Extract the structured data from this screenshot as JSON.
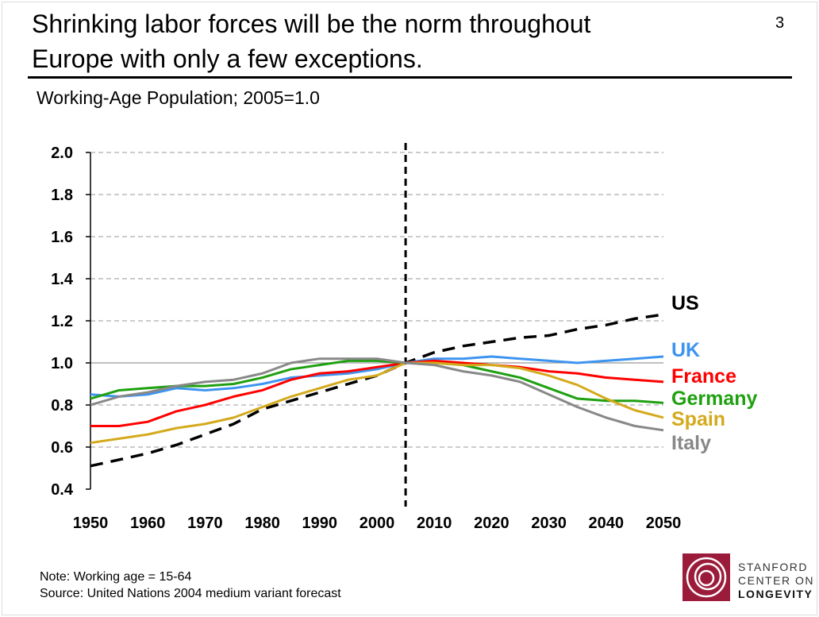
{
  "slide": {
    "title_line1": "Shrinking labor forces will be the norm throughout",
    "title_line2": "Europe with only a few exceptions.",
    "page_number": "3",
    "subtitle": "Working-Age Population; 2005=1.0",
    "note": "Note: Working age = 15-64",
    "source": "Source: United Nations 2004 medium variant forecast",
    "logo": {
      "line1": "STANFORD",
      "line2": "CENTER ON",
      "line3": "LONGEVITY",
      "color": "#9b1b3a"
    }
  },
  "chart_data": {
    "type": "line",
    "title": "",
    "xlabel": "",
    "ylabel": "",
    "xlim": [
      1950,
      2050
    ],
    "ylim": [
      0.4,
      2.0
    ],
    "x_ticks": [
      "1950",
      "1960",
      "1970",
      "1980",
      "1990",
      "2000",
      "2010",
      "2020",
      "2030",
      "2040",
      "2050"
    ],
    "y_ticks": [
      "0.4",
      "0.6",
      "0.8",
      "1.0",
      "1.2",
      "1.4",
      "1.6",
      "1.8",
      "2.0"
    ],
    "grid": "horizontal dashed",
    "reference_line_x": 2005,
    "x": [
      1950,
      1955,
      1960,
      1965,
      1970,
      1975,
      1980,
      1985,
      1990,
      1995,
      2000,
      2005,
      2010,
      2015,
      2020,
      2025,
      2030,
      2035,
      2040,
      2045,
      2050
    ],
    "series": [
      {
        "name": "US",
        "color": "#000000",
        "dashed": true,
        "values": [
          0.51,
          0.54,
          0.57,
          0.61,
          0.66,
          0.71,
          0.78,
          0.82,
          0.86,
          0.9,
          0.94,
          1.0,
          1.05,
          1.08,
          1.1,
          1.12,
          1.13,
          1.16,
          1.18,
          1.21,
          1.23
        ]
      },
      {
        "name": "UK",
        "color": "#3d94f0",
        "values": [
          0.85,
          0.84,
          0.85,
          0.88,
          0.87,
          0.88,
          0.9,
          0.93,
          0.94,
          0.95,
          0.97,
          1.0,
          1.02,
          1.02,
          1.03,
          1.02,
          1.01,
          1.0,
          1.01,
          1.02,
          1.03
        ]
      },
      {
        "name": "France",
        "color": "#ff0000",
        "values": [
          0.7,
          0.7,
          0.72,
          0.77,
          0.8,
          0.84,
          0.87,
          0.92,
          0.95,
          0.96,
          0.98,
          1.0,
          1.01,
          1.0,
          0.99,
          0.98,
          0.96,
          0.95,
          0.93,
          0.92,
          0.91
        ]
      },
      {
        "name": "Germany",
        "color": "#1fa010",
        "values": [
          0.83,
          0.87,
          0.88,
          0.89,
          0.89,
          0.9,
          0.93,
          0.97,
          0.99,
          1.01,
          1.01,
          1.0,
          1.0,
          0.99,
          0.96,
          0.93,
          0.88,
          0.83,
          0.82,
          0.82,
          0.81
        ]
      },
      {
        "name": "Spain",
        "color": "#d4aa1c",
        "values": [
          0.62,
          0.64,
          0.66,
          0.69,
          0.71,
          0.74,
          0.79,
          0.84,
          0.88,
          0.92,
          0.94,
          1.0,
          1.0,
          0.99,
          0.99,
          0.975,
          0.94,
          0.895,
          0.83,
          0.775,
          0.74
        ]
      },
      {
        "name": "Italy",
        "color": "#888888",
        "values": [
          0.8,
          0.84,
          0.86,
          0.89,
          0.91,
          0.92,
          0.95,
          1.0,
          1.02,
          1.02,
          1.02,
          1.0,
          0.99,
          0.96,
          0.94,
          0.91,
          0.85,
          0.79,
          0.74,
          0.7,
          0.68
        ]
      }
    ]
  }
}
